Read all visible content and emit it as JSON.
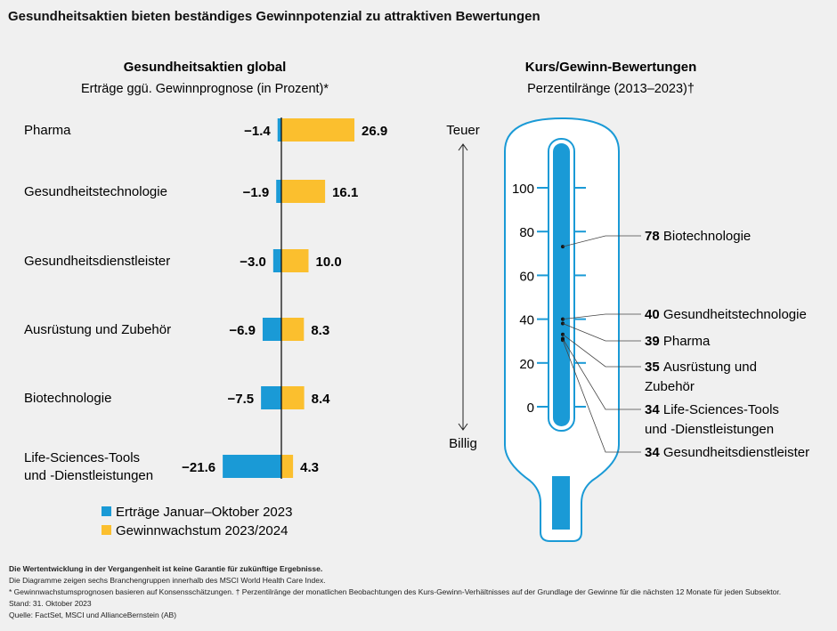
{
  "title": "Gesundheitsaktien bieten beständiges Gewinnpotenzial zu attraktiven Bewertungen",
  "chart_data": [
    {
      "type": "bar",
      "title": "Gesundheitsaktien global",
      "subtitle": "Erträge ggü. Gewinnprognose (in Prozent)*",
      "categories": [
        "Pharma",
        "Gesundheitstechnologie",
        "Gesundheitsdienstleister",
        "Ausrüstung und Zubehör",
        "Biotechnologie",
        "Life-Sciences-Tools und -Dienstleistungen"
      ],
      "series": [
        {
          "name": "Erträge Januar–Oktober 2023",
          "color": "#1a9ad6",
          "values": [
            -1.4,
            -1.9,
            -3.0,
            -6.9,
            -7.5,
            -21.6
          ]
        },
        {
          "name": "Gewinnwachstum 2023/2024",
          "color": "#fbbf2e",
          "values": [
            26.9,
            16.1,
            10.0,
            8.3,
            8.4,
            4.3
          ]
        }
      ],
      "legend": "bottom"
    },
    {
      "type": "scatter",
      "title": "Kurs/Gewinn-Bewertungen",
      "subtitle": "Perzentilränge (2013–2023)†",
      "ylim": [
        0,
        100
      ],
      "yticks": [
        0,
        20,
        40,
        60,
        80,
        100
      ],
      "top_label": "Teuer",
      "bottom_label": "Billig",
      "points": [
        {
          "value": 78,
          "label": "Biotechnologie"
        },
        {
          "value": 40,
          "label": "Gesundheitstechnologie"
        },
        {
          "value": 39,
          "label": "Pharma"
        },
        {
          "value": 35,
          "label": "Ausrüstung und Zubehör"
        },
        {
          "value": 34,
          "label": "Life-Sciences-Tools und -Dienstleistungen"
        },
        {
          "value": 34,
          "label": "Gesundheitsdienstleister"
        }
      ]
    }
  ],
  "footnotes": [
    "Die Wertentwicklung in der Vergangenheit ist keine Garantie für zukünftige Ergebnisse.",
    "Die Diagramme zeigen sechs Branchengruppen innerhalb des MSCI World Health Care Index.",
    "* Gewinnwachstumsprognosen basieren auf Konsensschätzungen. † Perzentilränge der monatlichen Beobachtungen des Kurs-Gewinn-Verhältnisses auf der Grundlage der Gewinne für die nächsten 12 Monate für jeden Subsektor.",
    "Stand: 31. Oktober 2023",
    "Quelle: FactSet, MSCI und AllianceBernstein (AB)"
  ]
}
